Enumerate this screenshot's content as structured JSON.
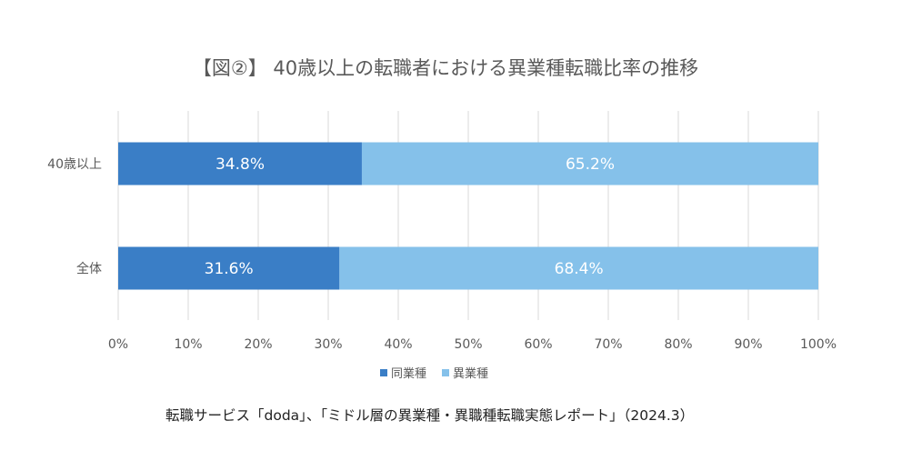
{
  "chart_data": {
    "type": "bar",
    "orientation": "horizontal",
    "stacked": true,
    "title": "【図②】 40歳以上の転職者における異業種転職比率の推移",
    "categories": [
      "40歳以上",
      "全体"
    ],
    "series": [
      {
        "name": "同業種",
        "values": [
          34.8,
          31.6
        ],
        "color": "#3a7ec6"
      },
      {
        "name": "異業種",
        "values": [
          65.2,
          68.4
        ],
        "color": "#85c1ea"
      }
    ],
    "data_labels": [
      [
        "34.8%",
        "65.2%"
      ],
      [
        "31.6%",
        "68.4%"
      ]
    ],
    "xlim": [
      0,
      100
    ],
    "x_ticks": [
      "0%",
      "10%",
      "20%",
      "30%",
      "40%",
      "50%",
      "60%",
      "70%",
      "80%",
      "90%",
      "100%"
    ],
    "grid": "vertical",
    "legend_position": "bottom",
    "source": "転職サービス「doda」、「ミドル層の異業種・異職種転職実態レポート」（2024.3）"
  }
}
